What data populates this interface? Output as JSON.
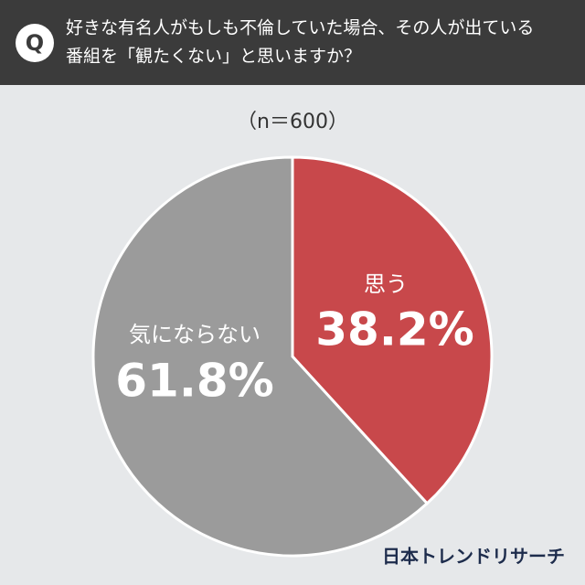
{
  "chart_data": {
    "type": "pie",
    "badge": "Q",
    "title": [
      "好きな有名人がもしも不倫していた場合、その人が出ている",
      "番組を「観たくない」と思いますか？"
    ],
    "subtitle": "（n＝600）",
    "categories": [
      "思う",
      "気にならない"
    ],
    "values": [
      38.2,
      61.8
    ],
    "value_labels": [
      "38.2%",
      "61.8%"
    ],
    "colors": [
      "#c8484b",
      "#9b9b9b"
    ],
    "source": "日本トレンドリサーチ"
  }
}
